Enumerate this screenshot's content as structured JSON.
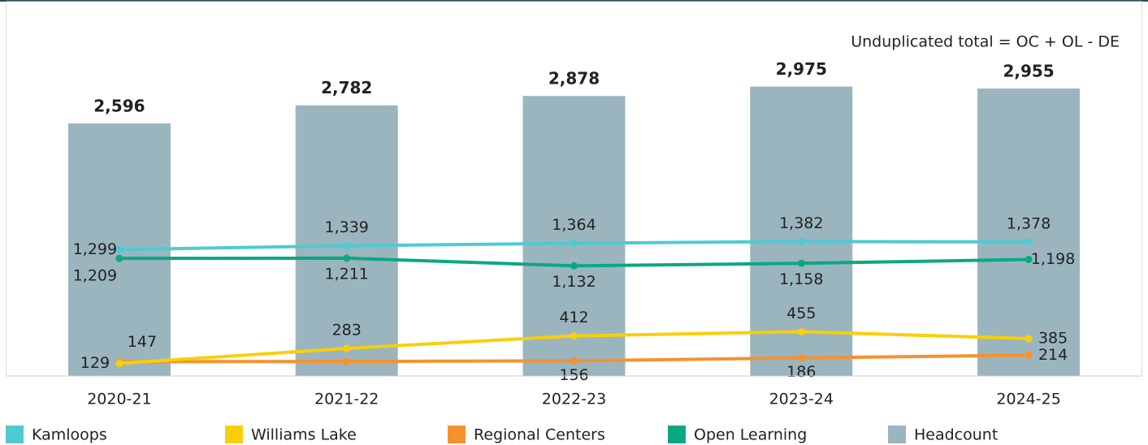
{
  "chart_data": {
    "type": "combo",
    "annotation": "Unduplicated total = OC + OL - DE",
    "categories": [
      "2020-21",
      "2021-22",
      "2022-23",
      "2023-24",
      "2024-25"
    ],
    "ylim": [
      0,
      3000
    ],
    "series": [
      {
        "name": "Kamloops",
        "type": "line",
        "color": "#4ecbd1",
        "values": [
          1299,
          1339,
          1364,
          1382,
          1378
        ],
        "value_labels": [
          "1,299",
          "1,339",
          "1,364",
          "1,382",
          "1,378"
        ]
      },
      {
        "name": "Williams Lake",
        "type": "line",
        "color": "#f9cf0a",
        "values": [
          129,
          283,
          412,
          455,
          385
        ]
      },
      {
        "name": "Regional Centers",
        "type": "line",
        "color": "#f5922f",
        "values": [
          147,
          150,
          156,
          186,
          214
        ],
        "value_labels": [
          "147",
          null,
          "156",
          "186",
          "214"
        ]
      },
      {
        "name": "Open Learning",
        "type": "line",
        "color": "#0aa882",
        "values": [
          1209,
          1211,
          1132,
          1158,
          1198
        ],
        "value_labels": [
          "1,209",
          "1,211",
          "1,132",
          "1,158",
          "1,198"
        ]
      },
      {
        "name": "Headcount",
        "type": "bar",
        "color": "#9bb5bf",
        "values": [
          2596,
          2782,
          2878,
          2975,
          2955
        ],
        "value_labels": [
          "2,596",
          "2,782",
          "2,878",
          "2,975",
          "2,955"
        ]
      }
    ]
  }
}
